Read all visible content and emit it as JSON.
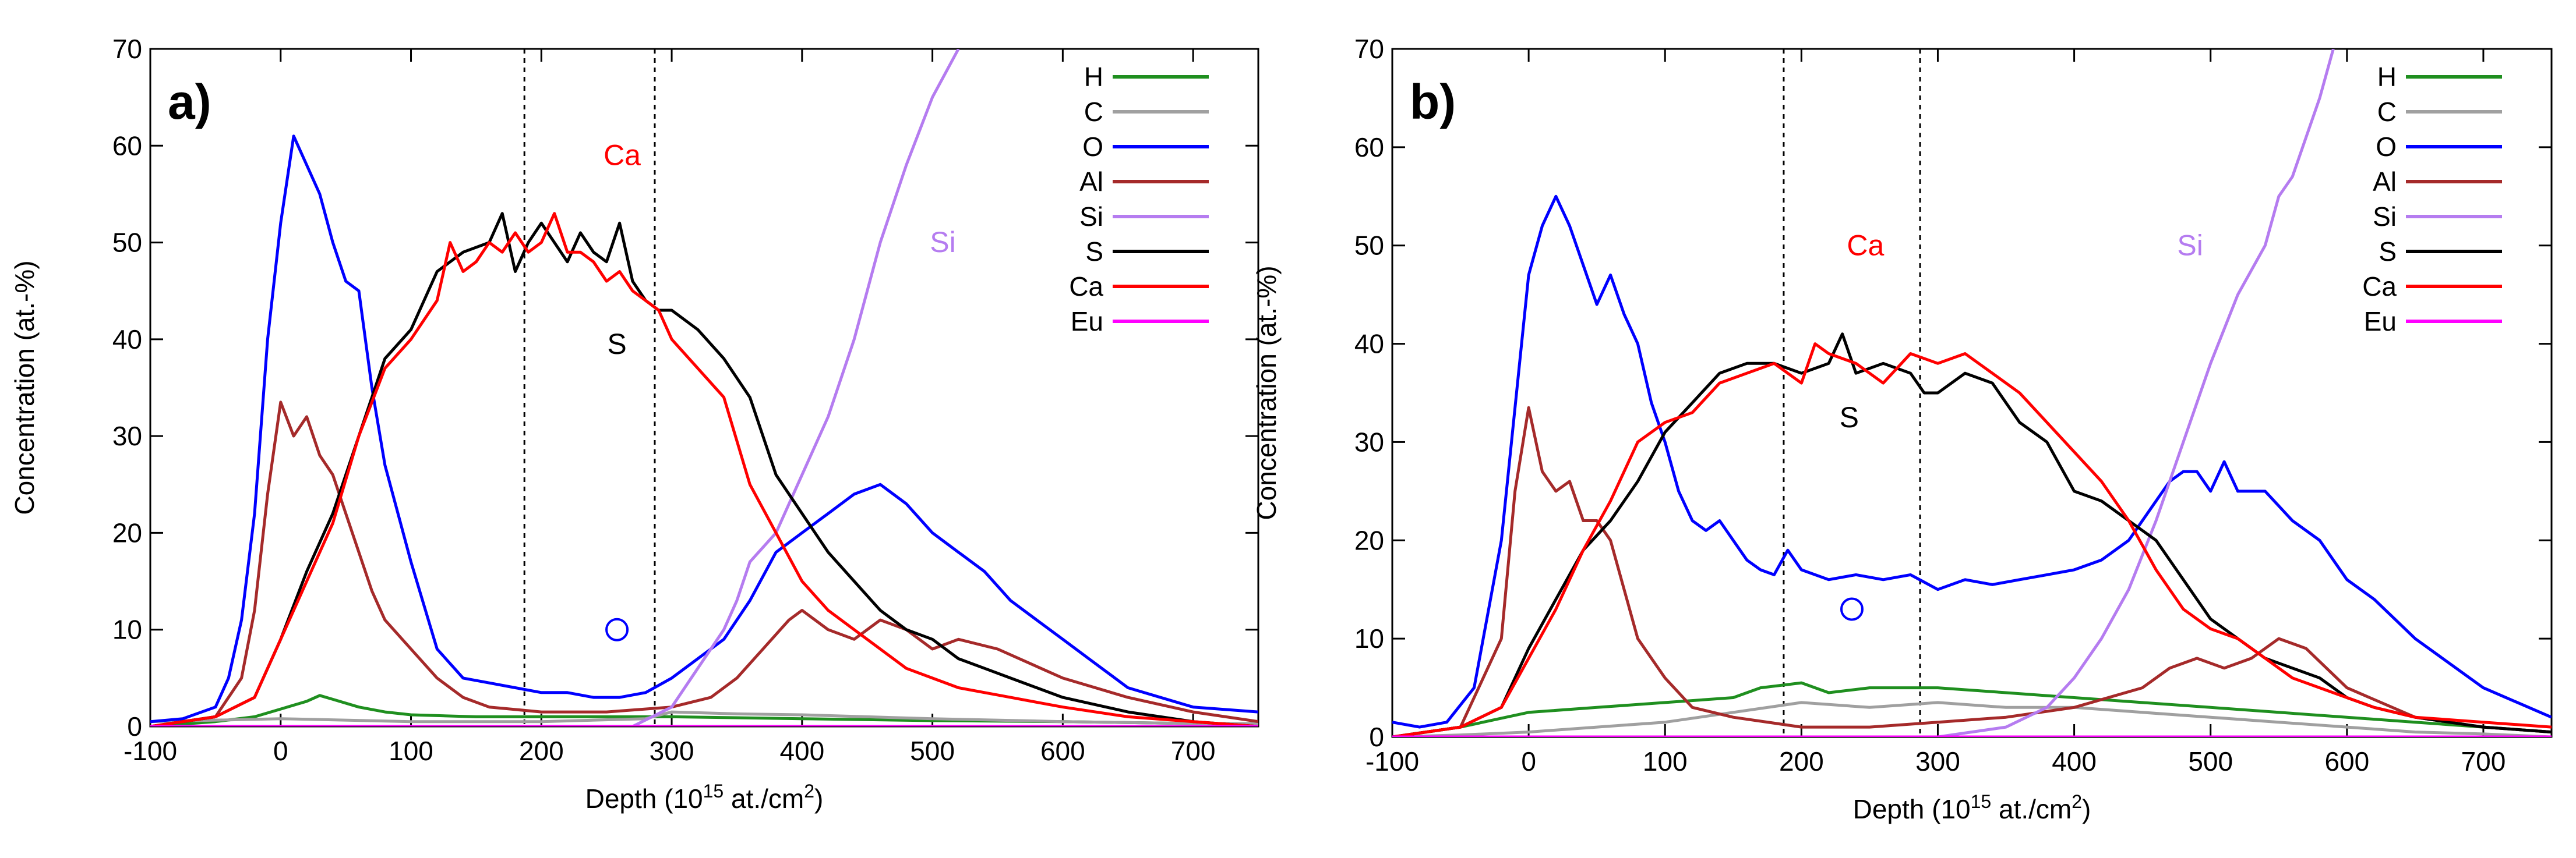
{
  "chart_data": [
    {
      "panel_label": "a)",
      "type": "line",
      "xlabel": "Depth (10",
      "xlabel_sup": "15",
      "xlabel_tail": " at./cm",
      "xlabel_sup2": "2",
      "xlabel_end": ")",
      "ylabel": "Concentration (at.-%)",
      "xlim": [
        -100,
        750
      ],
      "ylim": [
        0,
        70
      ],
      "xticks": [
        -100,
        0,
        100,
        200,
        300,
        400,
        500,
        600,
        700
      ],
      "yticks": [
        0,
        10,
        20,
        30,
        40,
        50,
        60,
        70
      ],
      "vlines": [
        187,
        287
      ],
      "annotations": [
        {
          "text": "Ca",
          "x": 262,
          "y": 58,
          "color": "#ff0000"
        },
        {
          "text": "Si",
          "x": 508,
          "y": 49,
          "color": "#b57cf0"
        },
        {
          "text": "S",
          "x": 258,
          "y": 38.5,
          "color": "#000000"
        },
        {
          "text": "O",
          "x": 258,
          "y": 10,
          "color": "#0000ff",
          "marker": "circle"
        }
      ],
      "legend": {
        "position": "top-right"
      },
      "series": [
        {
          "name": "H",
          "color": "#1f8f1f",
          "x": [
            -100,
            -50,
            -20,
            0,
            20,
            30,
            40,
            60,
            80,
            100,
            150,
            200,
            300,
            400,
            500,
            600,
            700,
            750
          ],
          "y": [
            0,
            0.5,
            1,
            1.8,
            2.6,
            3.2,
            2.8,
            2,
            1.5,
            1.2,
            1,
            1,
            1,
            0.8,
            0.6,
            0.5,
            0.3,
            0.3
          ]
        },
        {
          "name": "C",
          "color": "#a0a0a0",
          "x": [
            -100,
            0,
            100,
            200,
            280,
            300,
            350,
            400,
            450,
            500,
            600,
            700,
            750
          ],
          "y": [
            0.5,
            0.8,
            0.5,
            0.5,
            0.8,
            1.5,
            1.3,
            1.2,
            1,
            0.8,
            0.5,
            0.3,
            0.3
          ]
        },
        {
          "name": "O",
          "color": "#0000ff",
          "x": [
            -100,
            -75,
            -50,
            -40,
            -30,
            -20,
            -10,
            0,
            10,
            20,
            30,
            40,
            50,
            60,
            70,
            80,
            100,
            120,
            140,
            160,
            180,
            200,
            220,
            240,
            260,
            280,
            300,
            320,
            340,
            360,
            380,
            400,
            420,
            440,
            460,
            480,
            500,
            520,
            540,
            560,
            580,
            600,
            620,
            650,
            700,
            750
          ],
          "y": [
            0.5,
            0.8,
            2,
            5,
            11,
            22,
            40,
            52,
            61,
            58,
            55,
            50,
            46,
            45,
            35,
            27,
            17,
            8,
            5,
            4.5,
            4,
            3.5,
            3.5,
            3,
            3,
            3.5,
            5,
            7,
            9,
            13,
            18,
            20,
            22,
            24,
            25,
            23,
            20,
            18,
            16,
            13,
            11,
            9,
            7,
            4,
            2,
            1.5
          ]
        },
        {
          "name": "Al",
          "color": "#a52a2a",
          "x": [
            -100,
            -50,
            -30,
            -20,
            -10,
            0,
            10,
            20,
            30,
            40,
            50,
            60,
            70,
            80,
            100,
            120,
            140,
            160,
            200,
            250,
            300,
            330,
            350,
            370,
            390,
            400,
            420,
            440,
            460,
            480,
            500,
            520,
            550,
            600,
            650,
            700,
            750
          ],
          "y": [
            0,
            1,
            5,
            12,
            24,
            33.5,
            30,
            32,
            28,
            26,
            22,
            18,
            14,
            11,
            8,
            5,
            3,
            2,
            1.5,
            1.5,
            2,
            3,
            5,
            8,
            11,
            12,
            10,
            9,
            11,
            10,
            8,
            9,
            8,
            5,
            3,
            1.5,
            0.5
          ]
        },
        {
          "name": "Si",
          "color": "#b57cf0",
          "x": [
            -100,
            200,
            270,
            300,
            320,
            340,
            350,
            360,
            380,
            400,
            420,
            440,
            460,
            480,
            500,
            520
          ],
          "y": [
            0,
            0,
            0,
            2,
            6,
            10,
            13,
            17,
            20,
            26,
            32,
            40,
            50,
            58,
            65,
            70
          ]
        },
        {
          "name": "S",
          "color": "#000000",
          "x": [
            -100,
            -50,
            -20,
            0,
            20,
            40,
            60,
            80,
            100,
            120,
            140,
            160,
            170,
            180,
            190,
            200,
            210,
            220,
            230,
            240,
            250,
            260,
            270,
            280,
            290,
            300,
            320,
            340,
            360,
            380,
            400,
            420,
            440,
            460,
            480,
            500,
            520,
            540,
            560,
            580,
            600,
            650,
            700,
            750
          ],
          "y": [
            0,
            1,
            3,
            9,
            16,
            22,
            30,
            38,
            41,
            47,
            49,
            50,
            53,
            47,
            50,
            52,
            50,
            48,
            51,
            49,
            48,
            52,
            46,
            44,
            43,
            43,
            41,
            38,
            34,
            26,
            22,
            18,
            15,
            12,
            10,
            9,
            7,
            6,
            5,
            4,
            3,
            1.5,
            0.5,
            0
          ]
        },
        {
          "name": "Ca",
          "color": "#ff0000",
          "x": [
            -100,
            -50,
            -20,
            0,
            20,
            40,
            60,
            80,
            100,
            120,
            130,
            140,
            150,
            160,
            170,
            180,
            190,
            200,
            210,
            220,
            230,
            240,
            250,
            260,
            270,
            280,
            290,
            300,
            320,
            340,
            360,
            380,
            400,
            420,
            440,
            460,
            480,
            500,
            520,
            540,
            560,
            580,
            600,
            650,
            700,
            750
          ],
          "y": [
            0,
            1,
            3,
            9,
            15,
            21,
            30,
            37,
            40,
            44,
            50,
            47,
            48,
            50,
            49,
            51,
            49,
            50,
            53,
            49,
            49,
            48,
            46,
            47,
            45,
            44,
            43,
            40,
            37,
            34,
            25,
            20,
            15,
            12,
            10,
            8,
            6,
            5,
            4,
            3.5,
            3,
            2.5,
            2,
            1,
            0.5,
            0
          ]
        },
        {
          "name": "Eu",
          "color": "#ff00ff",
          "x": [
            -100,
            750
          ],
          "y": [
            0,
            0
          ]
        }
      ]
    },
    {
      "panel_label": "b)",
      "type": "line",
      "xlabel": "Depth (10",
      "xlabel_sup": "15",
      "xlabel_tail": " at./cm",
      "xlabel_sup2": "2",
      "xlabel_end": ")",
      "ylabel": "Concentration (at.-%)",
      "xlim": [
        -100,
        750
      ],
      "ylim": [
        0,
        70
      ],
      "xticks": [
        -100,
        0,
        100,
        200,
        300,
        400,
        500,
        600,
        700
      ],
      "yticks": [
        0,
        10,
        20,
        30,
        40,
        50,
        60,
        70
      ],
      "vlines": [
        187,
        287
      ],
      "annotations": [
        {
          "text": "Ca",
          "x": 247,
          "y": 49,
          "color": "#ff0000"
        },
        {
          "text": "Si",
          "x": 485,
          "y": 49,
          "color": "#b57cf0"
        },
        {
          "text": "S",
          "x": 235,
          "y": 31.5,
          "color": "#000000"
        },
        {
          "text": "O",
          "x": 237,
          "y": 13,
          "color": "#0000ff",
          "marker": "circle"
        }
      ],
      "legend": {
        "position": "top-right"
      },
      "series": [
        {
          "name": "H",
          "color": "#1f8f1f",
          "x": [
            -100,
            -50,
            0,
            50,
            100,
            150,
            170,
            200,
            220,
            250,
            300,
            350,
            400,
            450,
            500,
            550,
            600,
            650,
            700,
            750
          ],
          "y": [
            0,
            1,
            2.5,
            3,
            3.5,
            4,
            5,
            5.5,
            4.5,
            5,
            5,
            4.5,
            4,
            3.5,
            3,
            2.5,
            2,
            1.5,
            1,
            0.5
          ]
        },
        {
          "name": "C",
          "color": "#a0a0a0",
          "x": [
            -100,
            -50,
            0,
            50,
            100,
            150,
            200,
            250,
            300,
            350,
            400,
            450,
            500,
            550,
            600,
            650,
            700,
            750
          ],
          "y": [
            0,
            0.2,
            0.5,
            1,
            1.5,
            2.5,
            3.5,
            3,
            3.5,
            3,
            3,
            2.5,
            2,
            1.5,
            1,
            0.5,
            0.3,
            0
          ]
        },
        {
          "name": "O",
          "color": "#0000ff",
          "x": [
            -100,
            -80,
            -60,
            -40,
            -20,
            0,
            10,
            20,
            30,
            40,
            50,
            60,
            70,
            80,
            90,
            100,
            110,
            120,
            130,
            140,
            150,
            160,
            170,
            180,
            190,
            200,
            220,
            240,
            260,
            280,
            300,
            320,
            340,
            360,
            380,
            400,
            420,
            440,
            460,
            470,
            480,
            490,
            500,
            510,
            520,
            540,
            560,
            580,
            600,
            620,
            650,
            700,
            750
          ],
          "y": [
            1.5,
            1,
            1.5,
            5,
            20,
            47,
            52,
            55,
            52,
            48,
            44,
            47,
            43,
            40,
            34,
            30,
            25,
            22,
            21,
            22,
            20,
            18,
            17,
            16.5,
            19,
            17,
            16,
            16.5,
            16,
            16.5,
            15,
            16,
            15.5,
            16,
            16.5,
            17,
            18,
            20,
            24,
            26,
            27,
            27,
            25,
            28,
            25,
            25,
            22,
            20,
            16,
            14,
            10,
            5,
            2
          ]
        },
        {
          "name": "Al",
          "color": "#a52a2a",
          "x": [
            -100,
            -50,
            -20,
            -10,
            0,
            10,
            20,
            30,
            40,
            50,
            60,
            70,
            80,
            100,
            120,
            150,
            200,
            250,
            300,
            350,
            400,
            450,
            470,
            490,
            510,
            530,
            550,
            570,
            600,
            650,
            700,
            750
          ],
          "y": [
            0,
            1,
            10,
            25,
            33.5,
            27,
            25,
            26,
            22,
            22,
            20,
            15,
            10,
            6,
            3,
            2,
            1,
            1,
            1.5,
            2,
            3,
            5,
            7,
            8,
            7,
            8,
            10,
            9,
            5,
            2,
            1,
            0.5
          ]
        },
        {
          "name": "Si",
          "color": "#b57cf0",
          "x": [
            -100,
            300,
            350,
            380,
            400,
            420,
            440,
            460,
            480,
            500,
            520,
            540,
            550,
            560,
            580,
            590
          ],
          "y": [
            0,
            0,
            1,
            3,
            6,
            10,
            15,
            22,
            30,
            38,
            45,
            50,
            55,
            57,
            65,
            70
          ]
        },
        {
          "name": "S",
          "color": "#000000",
          "x": [
            -100,
            -50,
            -20,
            0,
            20,
            40,
            60,
            80,
            100,
            120,
            140,
            160,
            180,
            200,
            220,
            230,
            240,
            260,
            280,
            290,
            300,
            320,
            340,
            360,
            380,
            400,
            420,
            440,
            460,
            480,
            500,
            520,
            540,
            560,
            580,
            600,
            620,
            650,
            700,
            750
          ],
          "y": [
            0,
            1,
            3,
            9,
            14,
            19,
            22,
            26,
            31,
            34,
            37,
            38,
            38,
            37,
            38,
            41,
            37,
            38,
            37,
            35,
            35,
            37,
            36,
            32,
            30,
            25,
            24,
            22,
            20,
            16,
            12,
            10,
            8,
            7,
            6,
            4,
            3,
            2,
            1,
            0.5
          ]
        },
        {
          "name": "Ca",
          "color": "#ff0000",
          "x": [
            -100,
            -50,
            -20,
            0,
            20,
            40,
            60,
            80,
            100,
            120,
            140,
            160,
            180,
            200,
            210,
            220,
            240,
            260,
            280,
            300,
            320,
            340,
            360,
            380,
            400,
            420,
            440,
            460,
            480,
            500,
            520,
            540,
            560,
            580,
            600,
            620,
            650,
            700,
            750
          ],
          "y": [
            0,
            1,
            3,
            8,
            13,
            19,
            24,
            30,
            32,
            33,
            36,
            37,
            38,
            36,
            40,
            39,
            38,
            36,
            39,
            38,
            39,
            37,
            35,
            32,
            29,
            26,
            22,
            17,
            13,
            11,
            10,
            8,
            6,
            5,
            4,
            3,
            2,
            1.5,
            1
          ]
        },
        {
          "name": "Eu",
          "color": "#ff00ff",
          "x": [
            -100,
            750
          ],
          "y": [
            0,
            0
          ]
        }
      ]
    }
  ]
}
